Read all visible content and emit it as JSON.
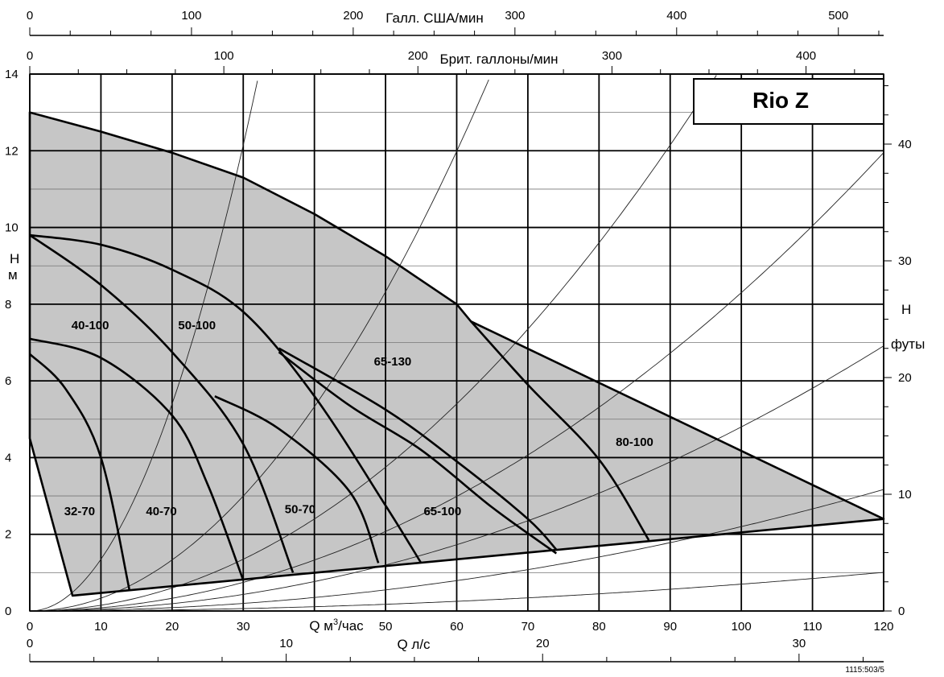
{
  "chart_data": {
    "type": "line",
    "title": "",
    "model_label": "Rio Z",
    "figure_code": "1115:503/5",
    "x_axis": {
      "label": "Q м³/час",
      "label_main": "Q м",
      "label_sup": "3",
      "label_tail": "/час",
      "range": [
        0,
        120
      ],
      "ticks": [
        0,
        10,
        20,
        30,
        40,
        50,
        60,
        70,
        80,
        90,
        100,
        110,
        120
      ],
      "labeled_ticks": [
        0,
        10,
        20,
        30,
        50,
        60,
        70,
        80,
        90,
        100,
        110,
        120
      ],
      "grid_step": 10
    },
    "x_axis_ls": {
      "label": "Q л/с",
      "range": [
        0,
        33.3
      ],
      "ticks": [
        0,
        10,
        20,
        30
      ],
      "minor_step": 2.5
    },
    "x_axis_usgpm": {
      "label": "Галл. США/мин",
      "range": [
        0,
        528
      ],
      "ticks": [
        0,
        100,
        200,
        300,
        400,
        500
      ],
      "labeled_ticks": [
        0,
        100,
        200,
        300,
        400,
        500
      ],
      "minor_step": 25
    },
    "x_axis_ukgpm": {
      "label": "Брит. галлоны/мин",
      "range": [
        0,
        440
      ],
      "ticks": [
        0,
        100,
        200,
        300,
        400
      ],
      "labeled_ticks": [
        0,
        100,
        200,
        300,
        400
      ],
      "minor_step": 25
    },
    "y_axis": {
      "label_line1": "H",
      "label_line2": "м",
      "range": [
        0,
        14
      ],
      "ticks": [
        0,
        2,
        4,
        6,
        8,
        10,
        12,
        14
      ],
      "grid_step": 1
    },
    "y_axis_ft": {
      "label_line1": "H",
      "label_line2": "футы",
      "range": [
        0,
        46
      ],
      "ticks": [
        0,
        10,
        20,
        30,
        40
      ],
      "minor_step": 2.5
    },
    "grid": true,
    "envelope": [
      [
        0,
        13
      ],
      [
        10,
        12.5
      ],
      [
        20,
        11.95
      ],
      [
        30,
        11.3
      ],
      [
        40,
        10.35
      ],
      [
        50,
        9.25
      ],
      [
        60,
        8.0
      ],
      [
        62,
        7.55
      ],
      [
        120,
        2.4
      ],
      [
        6,
        0.4
      ],
      [
        0,
        4.5
      ]
    ],
    "system_curve_factors": [
      0.0135,
      0.00333,
      0.0015,
      0.00083,
      0.00048,
      0.00022,
      7e-05
    ],
    "curves": [
      {
        "name": "32-70",
        "points": [
          [
            0,
            6.7
          ],
          [
            5,
            5.8
          ],
          [
            10,
            4.0
          ],
          [
            14,
            0.55
          ]
        ]
      },
      {
        "name": "40-70",
        "points": [
          [
            0,
            7.1
          ],
          [
            10,
            6.6
          ],
          [
            20,
            5.1
          ],
          [
            25,
            3.3
          ],
          [
            30,
            0.8
          ]
        ]
      },
      {
        "name": "40-100",
        "points": [
          [
            0,
            9.8
          ],
          [
            10,
            8.5
          ],
          [
            20,
            6.75
          ],
          [
            30,
            4.35
          ],
          [
            37,
            1.0
          ]
        ]
      },
      {
        "name": "50-70",
        "points": [
          [
            26,
            5.6
          ],
          [
            35,
            4.75
          ],
          [
            45,
            3.1
          ],
          [
            49,
            1.25
          ]
        ]
      },
      {
        "name": "50-100",
        "points": [
          [
            0,
            9.8
          ],
          [
            10,
            9.55
          ],
          [
            20,
            8.9
          ],
          [
            30,
            7.8
          ],
          [
            40,
            5.6
          ],
          [
            50,
            2.75
          ],
          [
            55,
            1.25
          ]
        ]
      },
      {
        "name": "65-100",
        "points": [
          [
            35,
            6.75
          ],
          [
            45,
            5.35
          ],
          [
            55,
            4.2
          ],
          [
            65,
            2.7
          ],
          [
            74,
            1.5
          ]
        ]
      },
      {
        "name": "65-130",
        "points": [
          [
            35,
            6.85
          ],
          [
            50,
            5.25
          ],
          [
            60,
            3.9
          ],
          [
            70,
            2.4
          ],
          [
            74,
            1.6
          ]
        ]
      },
      {
        "name": "80-100",
        "points": [
          [
            62,
            7.55
          ],
          [
            70,
            5.9
          ],
          [
            80,
            3.95
          ],
          [
            87,
            1.85
          ]
        ]
      }
    ],
    "curve_labels": [
      {
        "text": "40-100",
        "x": 8.5,
        "y": 7.35
      },
      {
        "text": "50-100",
        "x": 23.5,
        "y": 7.35
      },
      {
        "text": "65-130",
        "x": 51,
        "y": 6.4
      },
      {
        "text": "80-100",
        "x": 85,
        "y": 4.3
      },
      {
        "text": "32-70",
        "x": 7,
        "y": 2.5
      },
      {
        "text": "40-70",
        "x": 18.5,
        "y": 2.5
      },
      {
        "text": "50-70",
        "x": 38,
        "y": 2.55
      },
      {
        "text": "65-100",
        "x": 58,
        "y": 2.5
      }
    ]
  }
}
